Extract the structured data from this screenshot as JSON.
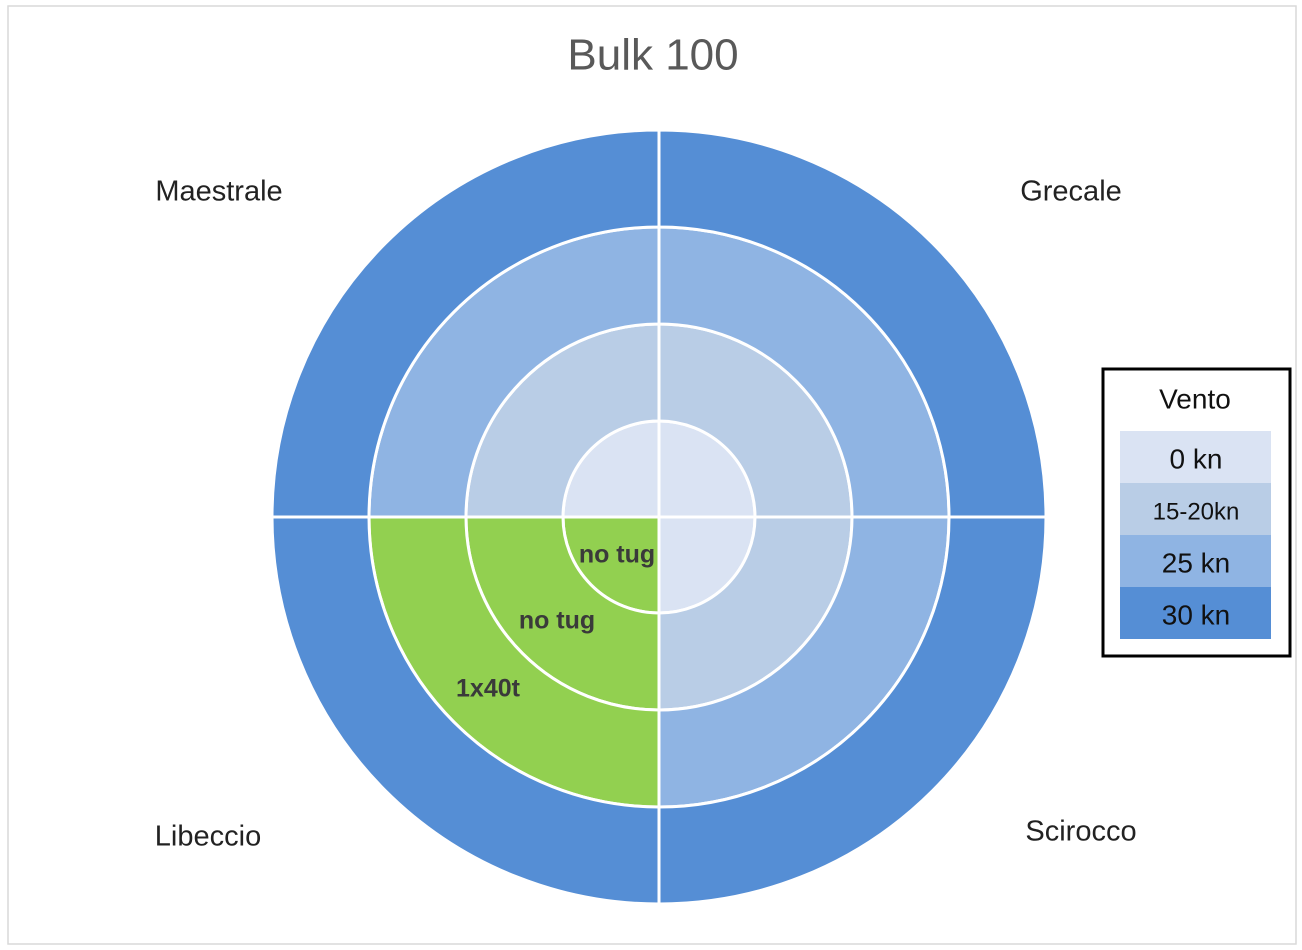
{
  "title": "Bulk 100",
  "directions": [
    "Maestrale",
    "Grecale",
    "Libeccio",
    "Scirocco"
  ],
  "legend": {
    "title": "Vento",
    "items": [
      "0 kn",
      "15-20kn",
      "25 kn",
      "30 kn"
    ]
  },
  "labels": [
    "no tug",
    "no tug",
    "1x40t"
  ]
}
